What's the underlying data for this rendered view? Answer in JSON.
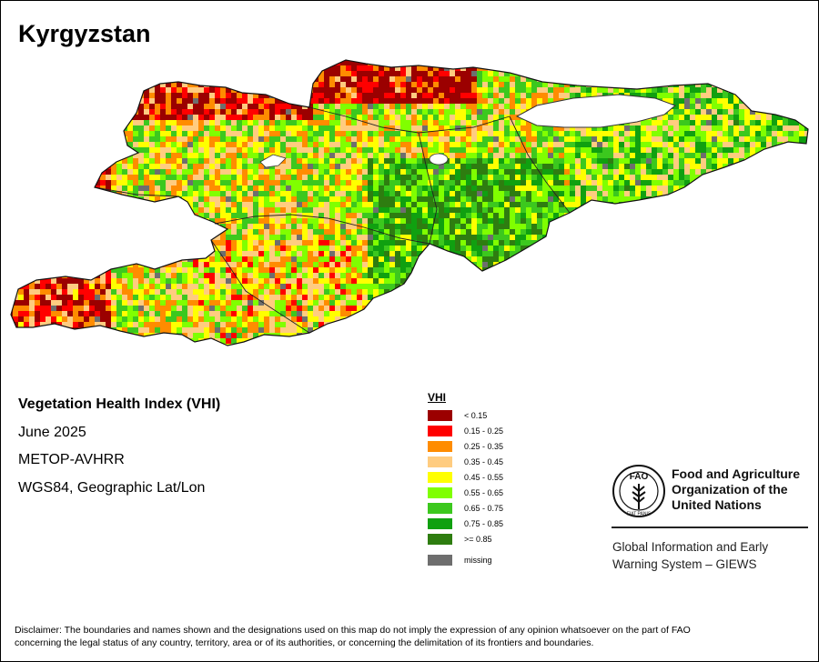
{
  "title": "Kyrgyzstan",
  "info": {
    "index_name": "Vegetation Health Index (VHI)",
    "period": "June 2025",
    "sensor": "METOP-AVHRR",
    "projection": "WGS84, Geographic Lat/Lon"
  },
  "legend": {
    "title": "VHI",
    "classes": [
      {
        "label": "< 0.15",
        "color": "#9b0000"
      },
      {
        "label": "0.15 - 0.25",
        "color": "#ff0000"
      },
      {
        "label": "0.25 - 0.35",
        "color": "#ff8c00"
      },
      {
        "label": "0.35 - 0.45",
        "color": "#ffcc80"
      },
      {
        "label": "0.45 - 0.55",
        "color": "#ffff00"
      },
      {
        "label": "0.55 - 0.65",
        "color": "#80ff00"
      },
      {
        "label": "0.65 - 0.75",
        "color": "#3cc81e"
      },
      {
        "label": "0.75 - 0.85",
        "color": "#10a010"
      },
      {
        "label": ">= 0.85",
        "color": "#2e7d10"
      }
    ],
    "missing": {
      "label": "missing",
      "color": "#6e6e6e"
    }
  },
  "organization": {
    "name_line1": "Food and Agriculture",
    "name_line2": "Organization of the",
    "name_line3": "United Nations",
    "emblem_text": "FAO",
    "emblem_motto": "FIAT PANIS",
    "system_line1": "Global Information and Early",
    "system_line2": "Warning System – GIEWS"
  },
  "disclaimer": {
    "line1": "Disclaimer: The boundaries and names shown and the designations used on this map do not imply the expression of any opinion whatsoever on the part of FAO",
    "line2": "concerning the legal status of any country, territory, area or of its authorities, or concerning the delimitation of its frontiers and boundaries."
  }
}
